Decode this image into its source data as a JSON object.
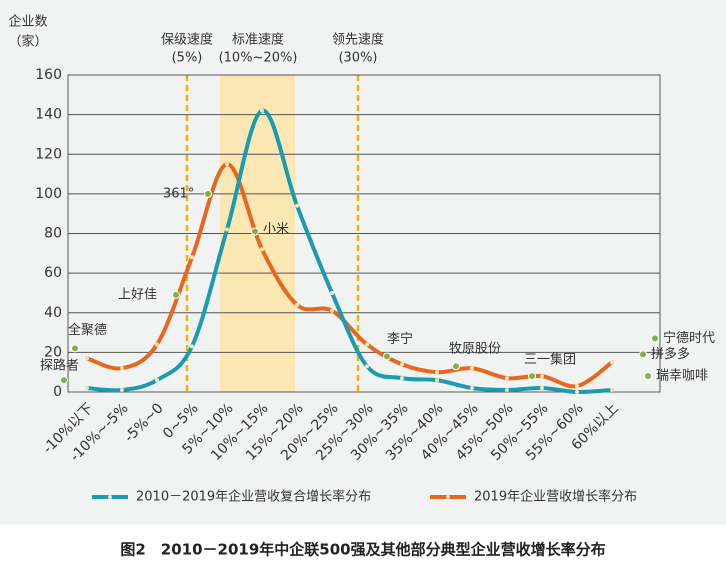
{
  "chart_data": {
    "type": "line",
    "caption": "图2　2010－2019年中企联500强及其他部分典型企业营收增长率分布",
    "ylabel": [
      "企业数",
      "（家）"
    ],
    "categories": [
      "-10%以下",
      "-10%~-5%",
      "-5%~0",
      "0~5%",
      "5%~10%",
      "10%~15%",
      "15%~20%",
      "20%~25%",
      "25%~30%",
      "30%~35%",
      "35%~40%",
      "40%~45%",
      "45%~50%",
      "50%~55%",
      "55%~60%",
      "60%以上"
    ],
    "series": [
      {
        "name": "2010－2019年企业营收复合增长率分布",
        "color": "#1a9bb0",
        "values": [
          2,
          1,
          6,
          23,
          82,
          142,
          94,
          50,
          13,
          7,
          6,
          2,
          1,
          2,
          0,
          1
        ]
      },
      {
        "name": "2019年企业营收增长率分布",
        "color": "#e8661e",
        "values": [
          17,
          12,
          24,
          68,
          115,
          72,
          44,
          41,
          24,
          14,
          10,
          12,
          7,
          8,
          3,
          15
        ]
      }
    ],
    "ylim": [
      0,
      160
    ],
    "yticks": [
      0,
      20,
      40,
      60,
      80,
      100,
      120,
      140,
      160
    ],
    "grid": true,
    "zones": [
      {
        "label": "保级速度",
        "sub": "(5%)"
      },
      {
        "label": "标准速度",
        "sub": "(10%~20%)"
      },
      {
        "label": "领先速度",
        "sub": "(30%)"
      }
    ],
    "annotation_color": "#7cb24a",
    "annotations": [
      {
        "label": "探路者",
        "value": 6
      },
      {
        "label": "全聚德",
        "value": 22
      },
      {
        "label": "上好佳",
        "value": 49
      },
      {
        "label": "361°",
        "value": 100
      },
      {
        "label": "小米",
        "value": 81
      },
      {
        "label": "李宁",
        "value": 18
      },
      {
        "label": "牧原股份",
        "value": 13
      },
      {
        "label": "三一集团",
        "value": 8
      },
      {
        "label": "宁德时代",
        "value": 27
      },
      {
        "label": "拼多多",
        "value": 19
      },
      {
        "label": "瑞幸咖啡",
        "value": 8
      }
    ]
  }
}
